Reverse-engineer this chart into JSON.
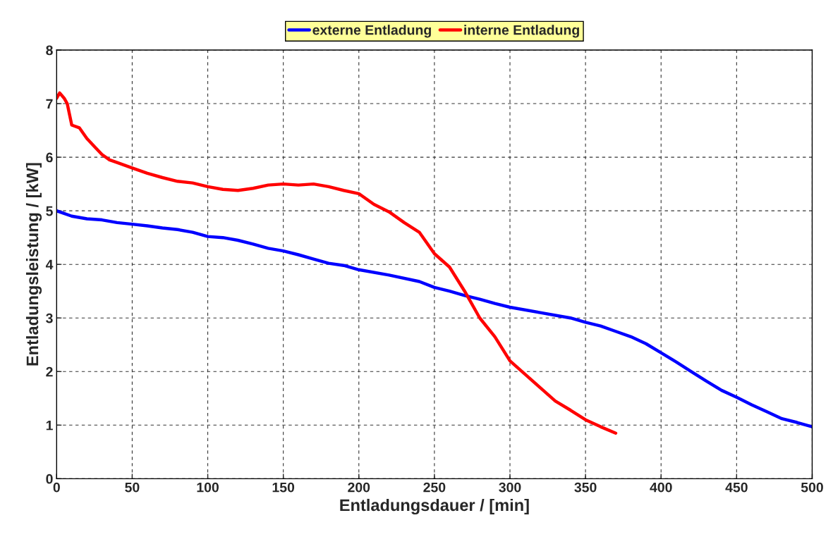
{
  "chart_data": {
    "type": "line",
    "xlabel": "Entladungsdauer / [min]",
    "ylabel": "Entladungsleistung / [kW]",
    "xlim": [
      0,
      500
    ],
    "xticks": [
      0,
      50,
      100,
      150,
      200,
      250,
      300,
      350,
      400,
      450,
      500
    ],
    "ylim": [
      0,
      8
    ],
    "yticks": [
      0,
      1,
      2,
      3,
      4,
      5,
      6,
      7,
      8
    ],
    "grid": true,
    "legend": "top",
    "marker": "none",
    "line_style": "solid",
    "series": [
      {
        "name": "externe Entladung",
        "color": "#0000ff",
        "x": [
          0,
          10,
          20,
          30,
          40,
          50,
          60,
          70,
          80,
          90,
          100,
          110,
          120,
          130,
          140,
          150,
          160,
          170,
          180,
          190,
          200,
          220,
          240,
          250,
          260,
          270,
          280,
          290,
          300,
          320,
          340,
          350,
          360,
          370,
          380,
          390,
          400,
          410,
          420,
          430,
          440,
          450,
          460,
          470,
          480,
          490,
          500
        ],
        "values": [
          5.0,
          4.9,
          4.85,
          4.83,
          4.78,
          4.75,
          4.72,
          4.68,
          4.65,
          4.6,
          4.52,
          4.5,
          4.45,
          4.38,
          4.3,
          4.25,
          4.18,
          4.1,
          4.02,
          3.98,
          3.9,
          3.8,
          3.68,
          3.57,
          3.5,
          3.42,
          3.35,
          3.27,
          3.2,
          3.1,
          3.0,
          2.92,
          2.85,
          2.75,
          2.65,
          2.52,
          2.35,
          2.18,
          2.0,
          1.82,
          1.65,
          1.52,
          1.38,
          1.25,
          1.12,
          1.05,
          0.97
        ]
      },
      {
        "name": "interne Entladung",
        "color": "#ff0000",
        "x": [
          0,
          2,
          5,
          7,
          10,
          15,
          20,
          25,
          30,
          35,
          40,
          50,
          60,
          70,
          80,
          90,
          100,
          110,
          120,
          130,
          140,
          150,
          160,
          170,
          180,
          190,
          200,
          210,
          220,
          230,
          240,
          250,
          260,
          270,
          280,
          290,
          300,
          310,
          320,
          330,
          340,
          350,
          360,
          370
        ],
        "values": [
          7.1,
          7.2,
          7.1,
          7.0,
          6.6,
          6.55,
          6.35,
          6.2,
          6.05,
          5.95,
          5.9,
          5.8,
          5.7,
          5.62,
          5.55,
          5.52,
          5.45,
          5.4,
          5.38,
          5.42,
          5.48,
          5.5,
          5.48,
          5.5,
          5.45,
          5.38,
          5.32,
          5.12,
          4.98,
          4.78,
          4.6,
          4.2,
          3.95,
          3.5,
          3.0,
          2.65,
          2.2,
          1.95,
          1.7,
          1.45,
          1.28,
          1.1,
          0.97,
          0.85
        ]
      }
    ]
  }
}
